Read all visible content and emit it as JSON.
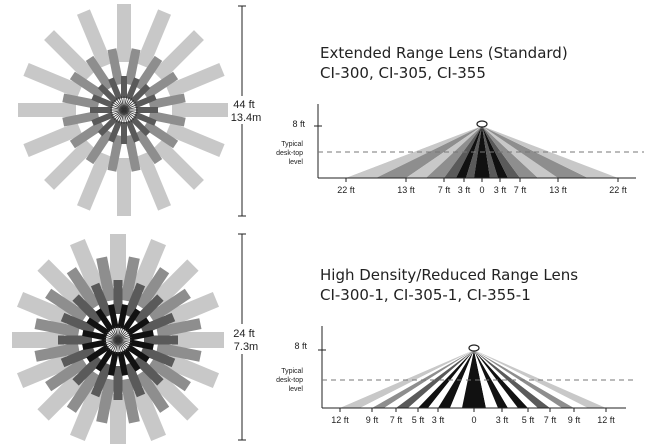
{
  "colors": {
    "light": "#c8c8c8",
    "mid": "#8e8e8e",
    "dark": "#5a5a5a",
    "black": "#111111",
    "line": "#222222",
    "dash": "#777777"
  },
  "icons": [
    "occupancy-sensor-icon"
  ],
  "panels": [
    {
      "title": "Extended Range Lens (Standard)",
      "models": "CI-300, CI-305, CI-355",
      "diameter_ft": "44 ft",
      "diameter_m": "13.4m",
      "height_label": "8 ft",
      "desk_label_1": "Typical",
      "desk_label_2": "desk-top",
      "desk_label_3": "level",
      "ticks": [
        "22 ft",
        "13 ft",
        "7 ft",
        "3 ft",
        "0",
        "3 ft",
        "7 ft",
        "13 ft",
        "22 ft"
      ]
    },
    {
      "title": "High Density/Reduced Range Lens",
      "models": "CI-300-1, CI-305-1, CI-355-1",
      "diameter_ft": "24 ft",
      "diameter_m": "7.3m",
      "height_label": "8 ft",
      "desk_label_1": "Typical",
      "desk_label_2": "desk-top",
      "desk_label_3": "level",
      "ticks": [
        "12 ft",
        "9 ft",
        "7 ft",
        "5 ft",
        "3 ft",
        "0",
        "3 ft",
        "5 ft",
        "7 ft",
        "9 ft",
        "12 ft"
      ]
    }
  ]
}
